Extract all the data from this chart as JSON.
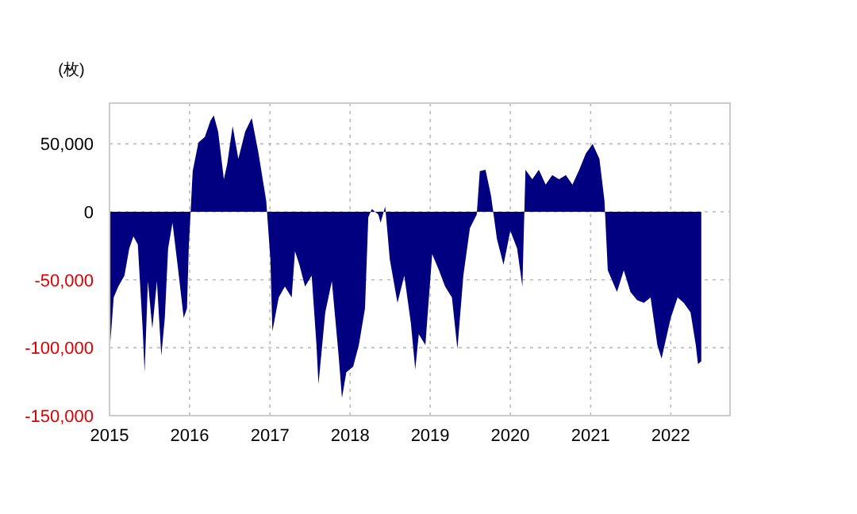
{
  "chart_data": {
    "type": "area",
    "ylabel": "(枚)",
    "x": [
      "2015-01-05",
      "2015-01-20",
      "2015-02-10",
      "2015-03-10",
      "2015-04-01",
      "2015-04-20",
      "2015-05-10",
      "2015-06-01",
      "2015-06-10",
      "2015-06-25",
      "2015-07-15",
      "2015-08-05",
      "2015-08-25",
      "2015-09-10",
      "2015-09-25",
      "2015-10-15",
      "2015-11-10",
      "2015-12-05",
      "2015-12-20",
      "2015-12-28",
      "2016-01-15",
      "2016-02-10",
      "2016-03-10",
      "2016-04-05",
      "2016-04-20",
      "2016-05-10",
      "2016-06-05",
      "2016-06-20",
      "2016-07-15",
      "2016-08-10",
      "2016-09-10",
      "2016-10-10",
      "2016-11-10",
      "2016-12-15",
      "2017-01-03",
      "2017-01-12",
      "2017-02-10",
      "2017-03-10",
      "2017-04-10",
      "2017-04-25",
      "2017-05-15",
      "2017-06-10",
      "2017-07-10",
      "2017-08-01",
      "2017-08-10",
      "2017-09-10",
      "2017-10-10",
      "2017-11-10",
      "2017-11-25",
      "2017-12-15",
      "2018-01-15",
      "2018-02-10",
      "2018-03-10",
      "2018-03-25",
      "2018-04-10",
      "2018-05-10",
      "2018-05-20",
      "2018-06-10",
      "2018-07-01",
      "2018-08-05",
      "2018-09-05",
      "2018-10-05",
      "2018-10-25",
      "2018-11-10",
      "2018-12-10",
      "2019-01-10",
      "2019-02-10",
      "2019-03-10",
      "2019-04-10",
      "2019-05-05",
      "2019-06-01",
      "2019-07-01",
      "2019-08-01",
      "2019-08-15",
      "2019-09-10",
      "2019-10-05",
      "2019-11-01",
      "2019-12-01",
      "2020-01-01",
      "2020-02-01",
      "2020-02-25",
      "2020-03-10",
      "2020-04-10",
      "2020-05-10",
      "2020-06-10",
      "2020-07-10",
      "2020-08-10",
      "2020-09-10",
      "2020-10-10",
      "2020-11-10",
      "2020-12-10",
      "2021-01-10",
      "2021-02-10",
      "2021-03-05",
      "2021-03-20",
      "2021-05-01",
      "2021-06-01",
      "2021-07-01",
      "2021-08-01",
      "2021-09-01",
      "2021-10-01",
      "2021-11-01",
      "2021-11-20",
      "2022-01-01",
      "2022-02-01",
      "2022-03-01",
      "2022-04-01",
      "2022-04-25",
      "2022-05-05",
      "2022-05-20"
    ],
    "series": [
      {
        "color": "#000080",
        "values": [
          -96000,
          -63000,
          -55000,
          -47000,
          -27000,
          -18000,
          -24000,
          -86000,
          -118000,
          -51000,
          -86000,
          -51000,
          -106000,
          -78000,
          -27000,
          -8000,
          -43000,
          -78000,
          -71000,
          -27000,
          30000,
          51000,
          55000,
          67000,
          71000,
          59000,
          24000,
          35000,
          63000,
          39000,
          59000,
          69000,
          43000,
          8000,
          -35000,
          -88000,
          -63000,
          -55000,
          -63000,
          -29000,
          -39000,
          -55000,
          -47000,
          -98000,
          -127000,
          -74000,
          -51000,
          -106000,
          -137000,
          -118000,
          -114000,
          -98000,
          -71000,
          -4000,
          2000,
          -2000,
          -8000,
          4000,
          -35000,
          -67000,
          -47000,
          -82000,
          -116000,
          -90000,
          -98000,
          -31000,
          -43000,
          -55000,
          -63000,
          -101000,
          -47000,
          -12000,
          -2000,
          30000,
          31000,
          12000,
          -20000,
          -39000,
          -14000,
          -27000,
          -55000,
          31000,
          24000,
          31000,
          20000,
          27000,
          24000,
          27000,
          20000,
          31000,
          43000,
          50000,
          39000,
          8000,
          -43000,
          -59000,
          -43000,
          -59000,
          -65000,
          -67000,
          -63000,
          -98000,
          -108000,
          -78000,
          -63000,
          -67000,
          -74000,
          -98000,
          -112000,
          -110000
        ]
      }
    ],
    "xlim": [
      "2015-01-01",
      "2022-09-28"
    ],
    "xticks": [
      {
        "value": "2015-01-01",
        "label": "2015"
      },
      {
        "value": "2016-01-01",
        "label": "2016"
      },
      {
        "value": "2017-01-01",
        "label": "2017"
      },
      {
        "value": "2018-01-01",
        "label": "2018"
      },
      {
        "value": "2019-01-01",
        "label": "2019"
      },
      {
        "value": "2020-01-01",
        "label": "2020"
      },
      {
        "value": "2021-01-01",
        "label": "2021"
      },
      {
        "value": "2022-01-01",
        "label": "2022"
      }
    ],
    "ylim": [
      -150000,
      80000
    ],
    "yticks": [
      {
        "value": 50000,
        "label": "50,000"
      },
      0,
      {
        "value": -50000,
        "label": "-50,000"
      },
      {
        "value": -100000,
        "label": "-100,000"
      },
      {
        "value": -150000,
        "label": "-150,000"
      }
    ],
    "grid": true
  }
}
